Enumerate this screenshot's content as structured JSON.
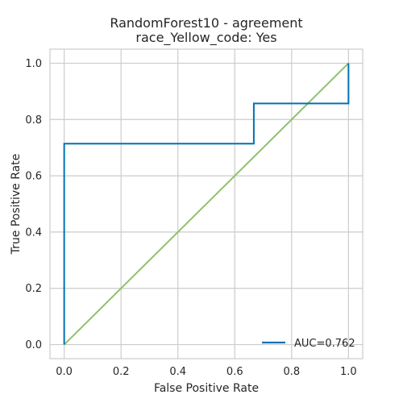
{
  "chart_data": {
    "type": "line",
    "title": [
      "RandomForest10 - agreement",
      "race_Yellow_code: Yes"
    ],
    "xlabel": "False Positive Rate",
    "ylabel": "True Positive Rate",
    "xlim": [
      -0.05,
      1.05
    ],
    "ylim": [
      -0.05,
      1.05
    ],
    "xticks": [
      0.0,
      0.2,
      0.4,
      0.6,
      0.8,
      1.0
    ],
    "yticks": [
      0.0,
      0.2,
      0.4,
      0.6,
      0.8,
      1.0
    ],
    "tick_labels": [
      "0.0",
      "0.2",
      "0.4",
      "0.6",
      "0.8",
      "1.0"
    ],
    "grid": true,
    "legend_position": "lower-right",
    "series": [
      {
        "name": "AUC=0.762",
        "color": "#0072b2",
        "x": [
          0.0,
          0.0,
          0.667,
          0.667,
          1.0,
          1.0
        ],
        "y": [
          0.0,
          0.714,
          0.714,
          0.857,
          0.857,
          1.0
        ]
      },
      {
        "color": "#8fc16e",
        "x": [
          0.0,
          1.0
        ],
        "y": [
          0.0,
          1.0
        ]
      }
    ]
  }
}
